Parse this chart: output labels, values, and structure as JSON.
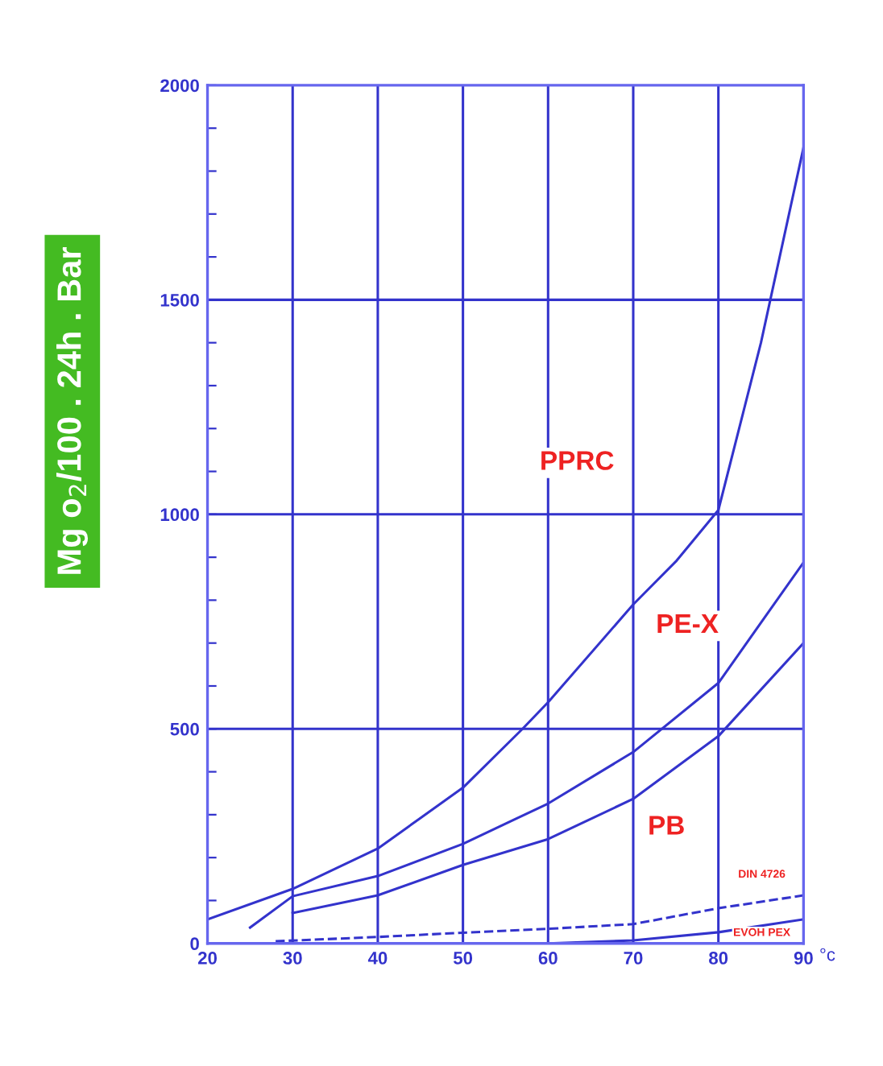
{
  "chart_data": {
    "type": "line",
    "ylabel": "Mg o$_{2}$/100 . 24h . Bar",
    "xlabel": "°c",
    "xlim": [
      20,
      90
    ],
    "ylim": [
      0,
      2000
    ],
    "xticks": [
      20,
      30,
      40,
      50,
      60,
      70,
      80,
      90
    ],
    "yticks": [
      0,
      {
        "value": 100,
        "label": null
      },
      {
        "value": 200,
        "label": null
      },
      {
        "value": 300,
        "label": null
      },
      {
        "value": 400,
        "label": null
      },
      500,
      {
        "value": 600,
        "label": null
      },
      {
        "value": 700,
        "label": null
      },
      {
        "value": 800,
        "label": null
      },
      {
        "value": 900,
        "label": null
      },
      1000,
      {
        "value": 1100,
        "label": null
      },
      {
        "value": 1200,
        "label": null
      },
      {
        "value": 1300,
        "label": null
      },
      {
        "value": 1400,
        "label": null
      },
      1500,
      {
        "value": 1600,
        "label": null
      },
      {
        "value": 1700,
        "label": null
      },
      {
        "value": 1800,
        "label": null
      },
      {
        "value": 1900,
        "label": null
      },
      2000
    ],
    "grid": true,
    "line_style": "solid",
    "marker": "none",
    "series": [
      {
        "color": "#3333cc",
        "x": [
          20,
          30,
          40,
          50,
          57,
          60,
          70,
          75,
          80,
          85,
          90
        ],
        "values": [
          56,
          127,
          221,
          363,
          500,
          562,
          790,
          890,
          1010,
          1400,
          1855
        ]
      },
      {
        "color": "#3333cc",
        "x": [
          25,
          30,
          40,
          50,
          60,
          70,
          80,
          90
        ],
        "values": [
          37,
          110,
          157,
          232,
          326,
          446,
          607,
          888
        ]
      },
      {
        "color": "#3333cc",
        "x": [
          30,
          40,
          50,
          60,
          70,
          80,
          90
        ],
        "values": [
          71,
          112,
          183,
          243,
          337,
          483,
          700
        ]
      },
      {
        "color": "#3333cc",
        "line_style": "dashed",
        "x": [
          28,
          40,
          50,
          60,
          70,
          80,
          90
        ],
        "values": [
          5,
          15,
          25,
          34,
          45,
          82,
          112
        ]
      },
      {
        "color": "#3333cc",
        "x": [
          60,
          70,
          80,
          90
        ],
        "values": [
          0,
          7,
          26,
          56
        ]
      }
    ],
    "annotations": [
      "PPRC",
      "PE-X",
      "PB",
      "DIN 4726",
      "EVOH PEX"
    ]
  }
}
